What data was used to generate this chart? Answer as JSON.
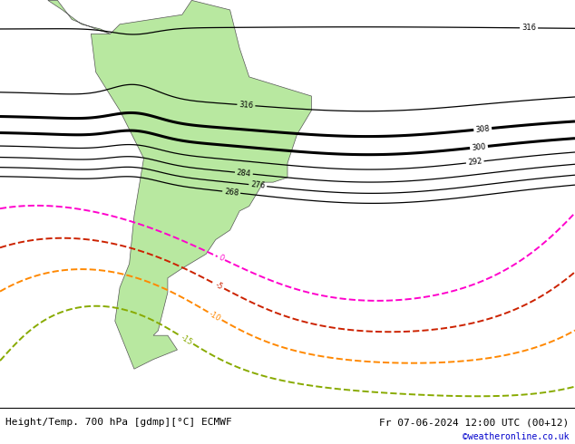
{
  "title_left": "Height/Temp. 700 hPa [gdmp][°C] ECMWF",
  "title_right": "Fr 07-06-2024 12:00 UTC (00+12)",
  "credit": "©weatheronline.co.uk",
  "ocean_color": "#e0e0e0",
  "land_color": "#b8e8a0",
  "border_color": "#888888",
  "height_color": "#000000",
  "temp_0_color": "#ff00cc",
  "temp_m5_color": "#cc2200",
  "temp_m10_color": "#ff8800",
  "temp_m15_color": "#88aa00",
  "dpi": 100,
  "figsize": [
    6.34,
    4.9
  ],
  "font_size_title": 8,
  "font_size_credit": 7,
  "xlim": [
    -100,
    20
  ],
  "ylim": [
    -70,
    15
  ]
}
